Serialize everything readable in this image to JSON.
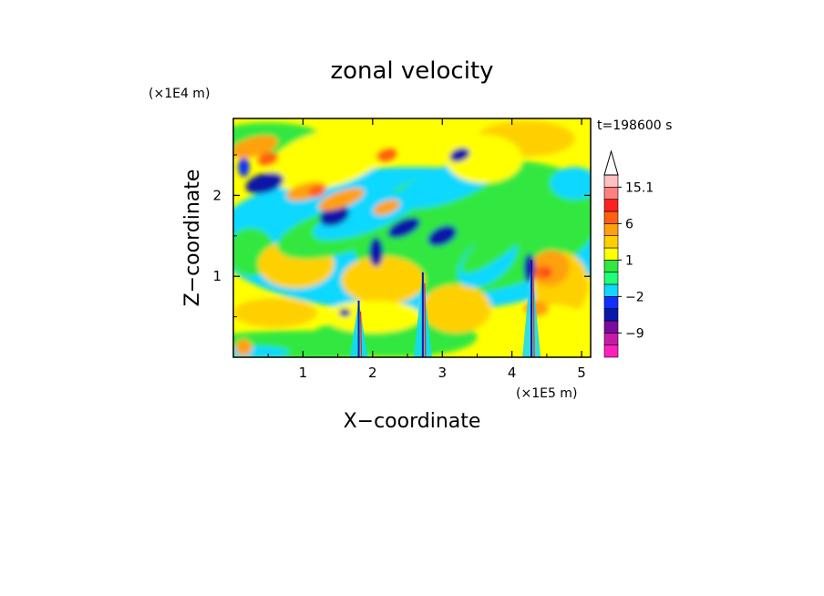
{
  "chart_data": {
    "type": "heatmap",
    "title": "zonal velocity",
    "xlabel": "X−coordinate",
    "ylabel": "Z−coordinate",
    "x_scale_label": "(×1E5 m)",
    "y_scale_label": "(×1E4 m)",
    "time_label": "t=198600 s",
    "xlim": [
      0,
      5.13
    ],
    "ylim": [
      0,
      2.95
    ],
    "x_ticks": [
      1,
      2,
      3,
      4,
      5
    ],
    "y_ticks": [
      1,
      2
    ],
    "colorbar": {
      "labels": [
        "15.1",
        "6",
        "1",
        "−2",
        "−9"
      ],
      "label_values": [
        15.1,
        6,
        1,
        -2,
        -9
      ],
      "levels": [
        -15,
        -12,
        -9,
        -6,
        -4,
        -2,
        -1,
        0,
        1,
        2,
        4,
        6,
        9,
        12,
        15.1
      ],
      "colors": [
        "#ff1fbf",
        "#c81aa8",
        "#7a0aa0",
        "#0818a8",
        "#1030ff",
        "#10d8ff",
        "#20ff78",
        "#30e840",
        "#ffff00",
        "#ffd000",
        "#ffa010",
        "#ff6010",
        "#ff2020",
        "#ff8080",
        "#ffc0c0"
      ],
      "extend": "max"
    },
    "field_description": "zonal velocity contours, mostly 0 to 4, tilted negative/positive bands in upper left, narrow vertical plumes near x=1.8, 2.7, 4.3"
  }
}
